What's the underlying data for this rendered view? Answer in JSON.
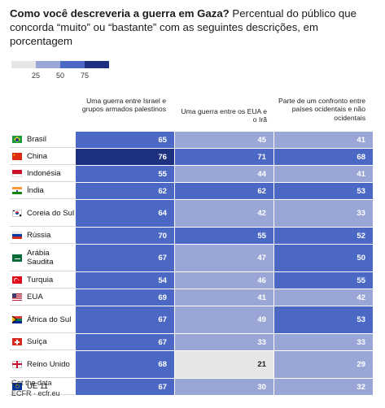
{
  "title_bold": "Como você descreveria a guerra em Gaza?",
  "title_rest": " Percentual do público que concorda “muito” ou “bastante” com as seguintes descrições, em porcentagem",
  "legend": {
    "ticks": [
      "25",
      "50",
      "75"
    ],
    "colors": [
      "#e6e6e6",
      "#9aa7d6",
      "#4a68c4",
      "#1e3181"
    ]
  },
  "footer": {
    "line1": "Get the data",
    "line2": "ECFR · ecfr.eu"
  },
  "chart_data": {
    "type": "table",
    "columns": [
      "Uma guerra entre Israel e grupos armados palestinos",
      "Uma guerra entre os EUA e o Irã",
      "Parte de um confronto entre países ocidentais e não ocidentais"
    ],
    "rows": [
      {
        "country": "Brasil",
        "flag": "brazil-flag-icon",
        "values": [
          65,
          45,
          41
        ]
      },
      {
        "country": "China",
        "flag": "china-flag-icon",
        "values": [
          76,
          71,
          68
        ]
      },
      {
        "country": "Indonésia",
        "flag": "indonesia-flag-icon",
        "values": [
          55,
          44,
          41
        ]
      },
      {
        "country": "Índia",
        "flag": "india-flag-icon",
        "values": [
          62,
          62,
          53
        ]
      },
      {
        "country": "Coreia do Sul",
        "flag": "south-korea-flag-icon",
        "values": [
          64,
          42,
          33
        ]
      },
      {
        "country": "Rússia",
        "flag": "russia-flag-icon",
        "values": [
          70,
          55,
          52
        ]
      },
      {
        "country": "Arábia Saudita",
        "flag": "saudi-arabia-flag-icon",
        "values": [
          67,
          47,
          50
        ]
      },
      {
        "country": "Turquia",
        "flag": "turkey-flag-icon",
        "values": [
          54,
          46,
          55
        ]
      },
      {
        "country": "EUA",
        "flag": "usa-flag-icon",
        "values": [
          69,
          41,
          42
        ]
      },
      {
        "country": "África do Sul",
        "flag": "south-africa-flag-icon",
        "values": [
          67,
          49,
          53
        ]
      },
      {
        "country": "Suíça",
        "flag": "switzerland-flag-icon",
        "values": [
          67,
          33,
          33
        ]
      },
      {
        "country": "Reino Unido",
        "flag": "uk-flag-icon",
        "values": [
          68,
          21,
          29
        ]
      },
      {
        "country": "UE 11",
        "flag": "eu-flag-icon",
        "values": [
          67,
          30,
          32
        ]
      }
    ],
    "color_scale": {
      "breaks": [
        25,
        50,
        75
      ],
      "colors": [
        "#e6e6e6",
        "#9aa7d6",
        "#4a68c4",
        "#1e3181"
      ]
    }
  }
}
